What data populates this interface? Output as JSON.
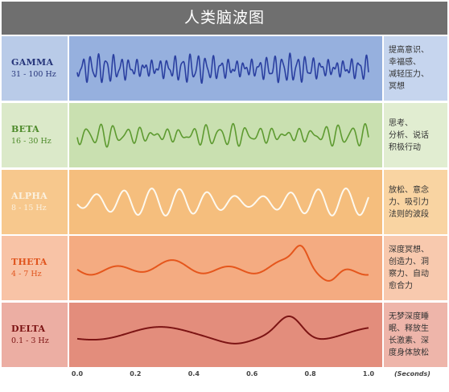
{
  "title": "人类脑波图",
  "waves": [
    {
      "name": "GAMMA",
      "freq": "31 - 100 Hz",
      "desc": [
        "提高意识、",
        "幸福感、",
        "减轻压力、",
        "冥想"
      ],
      "label_color": "#26357a",
      "stroke": "#2a3fa0",
      "left_bg": "#b9cbe8",
      "center_bg": "#96b0de",
      "right_bg": "#c6d5ee"
    },
    {
      "name": "BETA",
      "freq": "16 - 30 Hz",
      "desc": [
        "思考、",
        "分析、说话",
        "积极行动"
      ],
      "label_color": "#4d8a2a",
      "stroke": "#5d9a30",
      "left_bg": "#dbe9c9",
      "center_bg": "#c9e0b0",
      "right_bg": "#e1edd1"
    },
    {
      "name": "ALPHA",
      "freq": "8 - 15 Hz",
      "desc": [
        "放松、意念",
        "力、吸引力",
        "法则的波段"
      ],
      "label_color": "#fbf1df",
      "stroke": "#fdf9ef",
      "left_bg": "#f7c88d",
      "center_bg": "#f5be7d",
      "right_bg": "#f9d4a2"
    },
    {
      "name": "THETA",
      "freq": "4 - 7 Hz",
      "desc": [
        "深度冥想、",
        "创造力、洞",
        "察力、自动",
        "愈合力"
      ],
      "label_color": "#e0551e",
      "stroke": "#e5561c",
      "left_bg": "#f8c3a6",
      "center_bg": "#f4ab81",
      "right_bg": "#f8c9ae"
    },
    {
      "name": "DELTA",
      "freq": "0.1 - 3 Hz",
      "desc": [
        "无梦深度睡",
        "眠、释放生",
        "长激素、深",
        "度身体放松"
      ],
      "label_color": "#7b1212",
      "stroke": "#7c1414",
      "left_bg": "#ecaea3",
      "center_bg": "#e38d7c",
      "right_bg": "#eeb5aa"
    }
  ],
  "axis": {
    "ticks": [
      "0.0",
      "0.2",
      "0.4",
      "0.6",
      "0.8",
      "1.0"
    ],
    "unit": "(Seconds)"
  }
}
